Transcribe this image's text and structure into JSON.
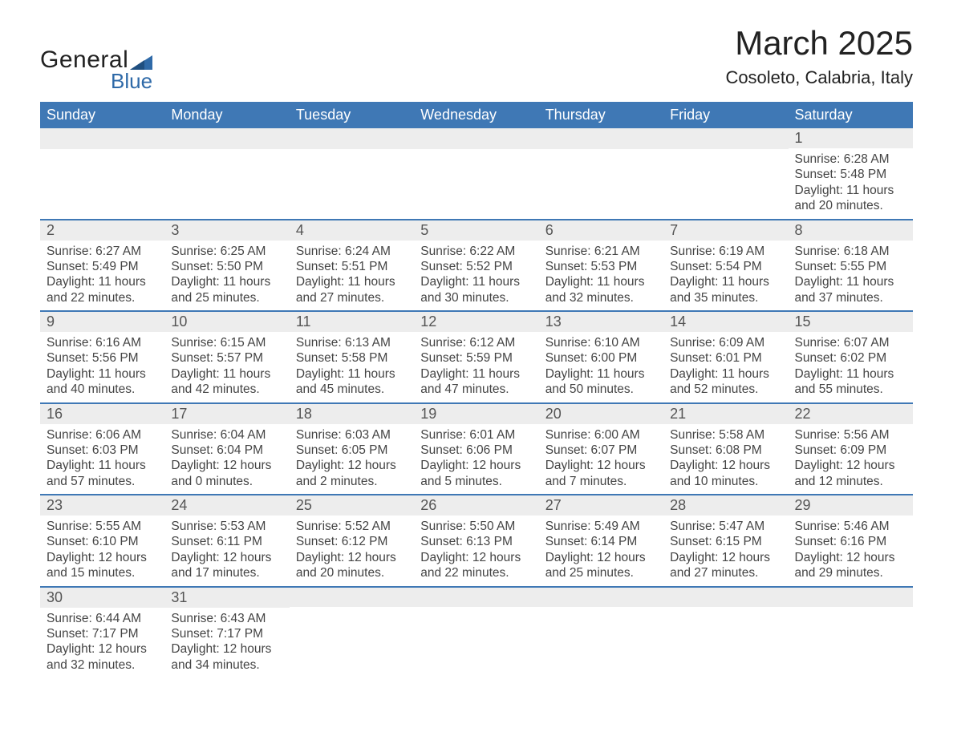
{
  "brand": {
    "word1": "General",
    "word2": "Blue",
    "color_dark": "#222222",
    "color_blue": "#2f6aa8"
  },
  "header": {
    "month_title": "March 2025",
    "location": "Cosoleto, Calabria, Italy"
  },
  "colors": {
    "header_bg": "#3f78b5",
    "header_text": "#ffffff",
    "strip_bg": "#ededed",
    "strip_border": "#3f78b5",
    "body_text": "#444444",
    "background": "#ffffff"
  },
  "typography": {
    "month_title_fontsize": 42,
    "location_fontsize": 22,
    "day_header_fontsize": 18,
    "date_fontsize": 18,
    "cell_fontsize": 15.5,
    "logo_general_fontsize": 30,
    "logo_blue_fontsize": 26
  },
  "calendar": {
    "day_names": [
      "Sunday",
      "Monday",
      "Tuesday",
      "Wednesday",
      "Thursday",
      "Friday",
      "Saturday"
    ],
    "weeks": [
      [
        {
          "empty": true
        },
        {
          "empty": true
        },
        {
          "empty": true
        },
        {
          "empty": true
        },
        {
          "empty": true
        },
        {
          "empty": true
        },
        {
          "date": "1",
          "sunrise": "Sunrise: 6:28 AM",
          "sunset": "Sunset: 5:48 PM",
          "daylight1": "Daylight: 11 hours",
          "daylight2": "and 20 minutes."
        }
      ],
      [
        {
          "date": "2",
          "sunrise": "Sunrise: 6:27 AM",
          "sunset": "Sunset: 5:49 PM",
          "daylight1": "Daylight: 11 hours",
          "daylight2": "and 22 minutes."
        },
        {
          "date": "3",
          "sunrise": "Sunrise: 6:25 AM",
          "sunset": "Sunset: 5:50 PM",
          "daylight1": "Daylight: 11 hours",
          "daylight2": "and 25 minutes."
        },
        {
          "date": "4",
          "sunrise": "Sunrise: 6:24 AM",
          "sunset": "Sunset: 5:51 PM",
          "daylight1": "Daylight: 11 hours",
          "daylight2": "and 27 minutes."
        },
        {
          "date": "5",
          "sunrise": "Sunrise: 6:22 AM",
          "sunset": "Sunset: 5:52 PM",
          "daylight1": "Daylight: 11 hours",
          "daylight2": "and 30 minutes."
        },
        {
          "date": "6",
          "sunrise": "Sunrise: 6:21 AM",
          "sunset": "Sunset: 5:53 PM",
          "daylight1": "Daylight: 11 hours",
          "daylight2": "and 32 minutes."
        },
        {
          "date": "7",
          "sunrise": "Sunrise: 6:19 AM",
          "sunset": "Sunset: 5:54 PM",
          "daylight1": "Daylight: 11 hours",
          "daylight2": "and 35 minutes."
        },
        {
          "date": "8",
          "sunrise": "Sunrise: 6:18 AM",
          "sunset": "Sunset: 5:55 PM",
          "daylight1": "Daylight: 11 hours",
          "daylight2": "and 37 minutes."
        }
      ],
      [
        {
          "date": "9",
          "sunrise": "Sunrise: 6:16 AM",
          "sunset": "Sunset: 5:56 PM",
          "daylight1": "Daylight: 11 hours",
          "daylight2": "and 40 minutes."
        },
        {
          "date": "10",
          "sunrise": "Sunrise: 6:15 AM",
          "sunset": "Sunset: 5:57 PM",
          "daylight1": "Daylight: 11 hours",
          "daylight2": "and 42 minutes."
        },
        {
          "date": "11",
          "sunrise": "Sunrise: 6:13 AM",
          "sunset": "Sunset: 5:58 PM",
          "daylight1": "Daylight: 11 hours",
          "daylight2": "and 45 minutes."
        },
        {
          "date": "12",
          "sunrise": "Sunrise: 6:12 AM",
          "sunset": "Sunset: 5:59 PM",
          "daylight1": "Daylight: 11 hours",
          "daylight2": "and 47 minutes."
        },
        {
          "date": "13",
          "sunrise": "Sunrise: 6:10 AM",
          "sunset": "Sunset: 6:00 PM",
          "daylight1": "Daylight: 11 hours",
          "daylight2": "and 50 minutes."
        },
        {
          "date": "14",
          "sunrise": "Sunrise: 6:09 AM",
          "sunset": "Sunset: 6:01 PM",
          "daylight1": "Daylight: 11 hours",
          "daylight2": "and 52 minutes."
        },
        {
          "date": "15",
          "sunrise": "Sunrise: 6:07 AM",
          "sunset": "Sunset: 6:02 PM",
          "daylight1": "Daylight: 11 hours",
          "daylight2": "and 55 minutes."
        }
      ],
      [
        {
          "date": "16",
          "sunrise": "Sunrise: 6:06 AM",
          "sunset": "Sunset: 6:03 PM",
          "daylight1": "Daylight: 11 hours",
          "daylight2": "and 57 minutes."
        },
        {
          "date": "17",
          "sunrise": "Sunrise: 6:04 AM",
          "sunset": "Sunset: 6:04 PM",
          "daylight1": "Daylight: 12 hours",
          "daylight2": "and 0 minutes."
        },
        {
          "date": "18",
          "sunrise": "Sunrise: 6:03 AM",
          "sunset": "Sunset: 6:05 PM",
          "daylight1": "Daylight: 12 hours",
          "daylight2": "and 2 minutes."
        },
        {
          "date": "19",
          "sunrise": "Sunrise: 6:01 AM",
          "sunset": "Sunset: 6:06 PM",
          "daylight1": "Daylight: 12 hours",
          "daylight2": "and 5 minutes."
        },
        {
          "date": "20",
          "sunrise": "Sunrise: 6:00 AM",
          "sunset": "Sunset: 6:07 PM",
          "daylight1": "Daylight: 12 hours",
          "daylight2": "and 7 minutes."
        },
        {
          "date": "21",
          "sunrise": "Sunrise: 5:58 AM",
          "sunset": "Sunset: 6:08 PM",
          "daylight1": "Daylight: 12 hours",
          "daylight2": "and 10 minutes."
        },
        {
          "date": "22",
          "sunrise": "Sunrise: 5:56 AM",
          "sunset": "Sunset: 6:09 PM",
          "daylight1": "Daylight: 12 hours",
          "daylight2": "and 12 minutes."
        }
      ],
      [
        {
          "date": "23",
          "sunrise": "Sunrise: 5:55 AM",
          "sunset": "Sunset: 6:10 PM",
          "daylight1": "Daylight: 12 hours",
          "daylight2": "and 15 minutes."
        },
        {
          "date": "24",
          "sunrise": "Sunrise: 5:53 AM",
          "sunset": "Sunset: 6:11 PM",
          "daylight1": "Daylight: 12 hours",
          "daylight2": "and 17 minutes."
        },
        {
          "date": "25",
          "sunrise": "Sunrise: 5:52 AM",
          "sunset": "Sunset: 6:12 PM",
          "daylight1": "Daylight: 12 hours",
          "daylight2": "and 20 minutes."
        },
        {
          "date": "26",
          "sunrise": "Sunrise: 5:50 AM",
          "sunset": "Sunset: 6:13 PM",
          "daylight1": "Daylight: 12 hours",
          "daylight2": "and 22 minutes."
        },
        {
          "date": "27",
          "sunrise": "Sunrise: 5:49 AM",
          "sunset": "Sunset: 6:14 PM",
          "daylight1": "Daylight: 12 hours",
          "daylight2": "and 25 minutes."
        },
        {
          "date": "28",
          "sunrise": "Sunrise: 5:47 AM",
          "sunset": "Sunset: 6:15 PM",
          "daylight1": "Daylight: 12 hours",
          "daylight2": "and 27 minutes."
        },
        {
          "date": "29",
          "sunrise": "Sunrise: 5:46 AM",
          "sunset": "Sunset: 6:16 PM",
          "daylight1": "Daylight: 12 hours",
          "daylight2": "and 29 minutes."
        }
      ],
      [
        {
          "date": "30",
          "sunrise": "Sunrise: 6:44 AM",
          "sunset": "Sunset: 7:17 PM",
          "daylight1": "Daylight: 12 hours",
          "daylight2": "and 32 minutes."
        },
        {
          "date": "31",
          "sunrise": "Sunrise: 6:43 AM",
          "sunset": "Sunset: 7:17 PM",
          "daylight1": "Daylight: 12 hours",
          "daylight2": "and 34 minutes."
        },
        {
          "empty": true
        },
        {
          "empty": true
        },
        {
          "empty": true
        },
        {
          "empty": true
        },
        {
          "empty": true
        }
      ]
    ]
  }
}
